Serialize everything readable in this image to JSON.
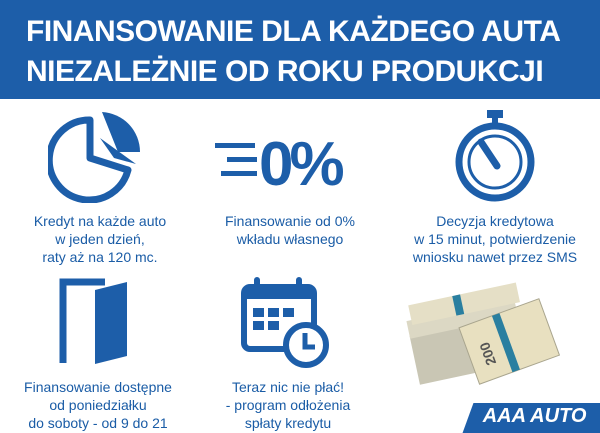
{
  "header": {
    "line1": "FINANSOWANIE DLA KAŻDEGO AUTA",
    "line2": "NIEZALEŻNIE OD ROKU PRODUKCJI"
  },
  "features": [
    {
      "icon": "pie-chart-icon",
      "lines": [
        "Kredyt na każde auto",
        "w jeden dzień,",
        "raty aż na 120 mc."
      ]
    },
    {
      "icon": "zero-percent-icon",
      "text": "0%",
      "lines": [
        "Finansowanie od 0%",
        "wkładu własnego"
      ]
    },
    {
      "icon": "stopwatch-icon",
      "lines": [
        "Decyzja kredytowa",
        "w 15 minut, potwierdzenie",
        "wniosku nawet przez SMS"
      ]
    },
    {
      "icon": "open-door-icon",
      "lines": [
        "Finansowanie dostępne",
        "od poniedziałku",
        "do soboty - od 9 do 21"
      ]
    },
    {
      "icon": "calendar-clock-icon",
      "lines": [
        "Teraz nic nie płać!",
        "- program odłożenia",
        "spłaty kredytu"
      ]
    },
    {
      "icon": "money-stack-icon",
      "text": "200"
    }
  ],
  "brand": "AAA AUTO",
  "colors": {
    "primary": "#1d5ea9",
    "text": "#1a5ca6"
  }
}
